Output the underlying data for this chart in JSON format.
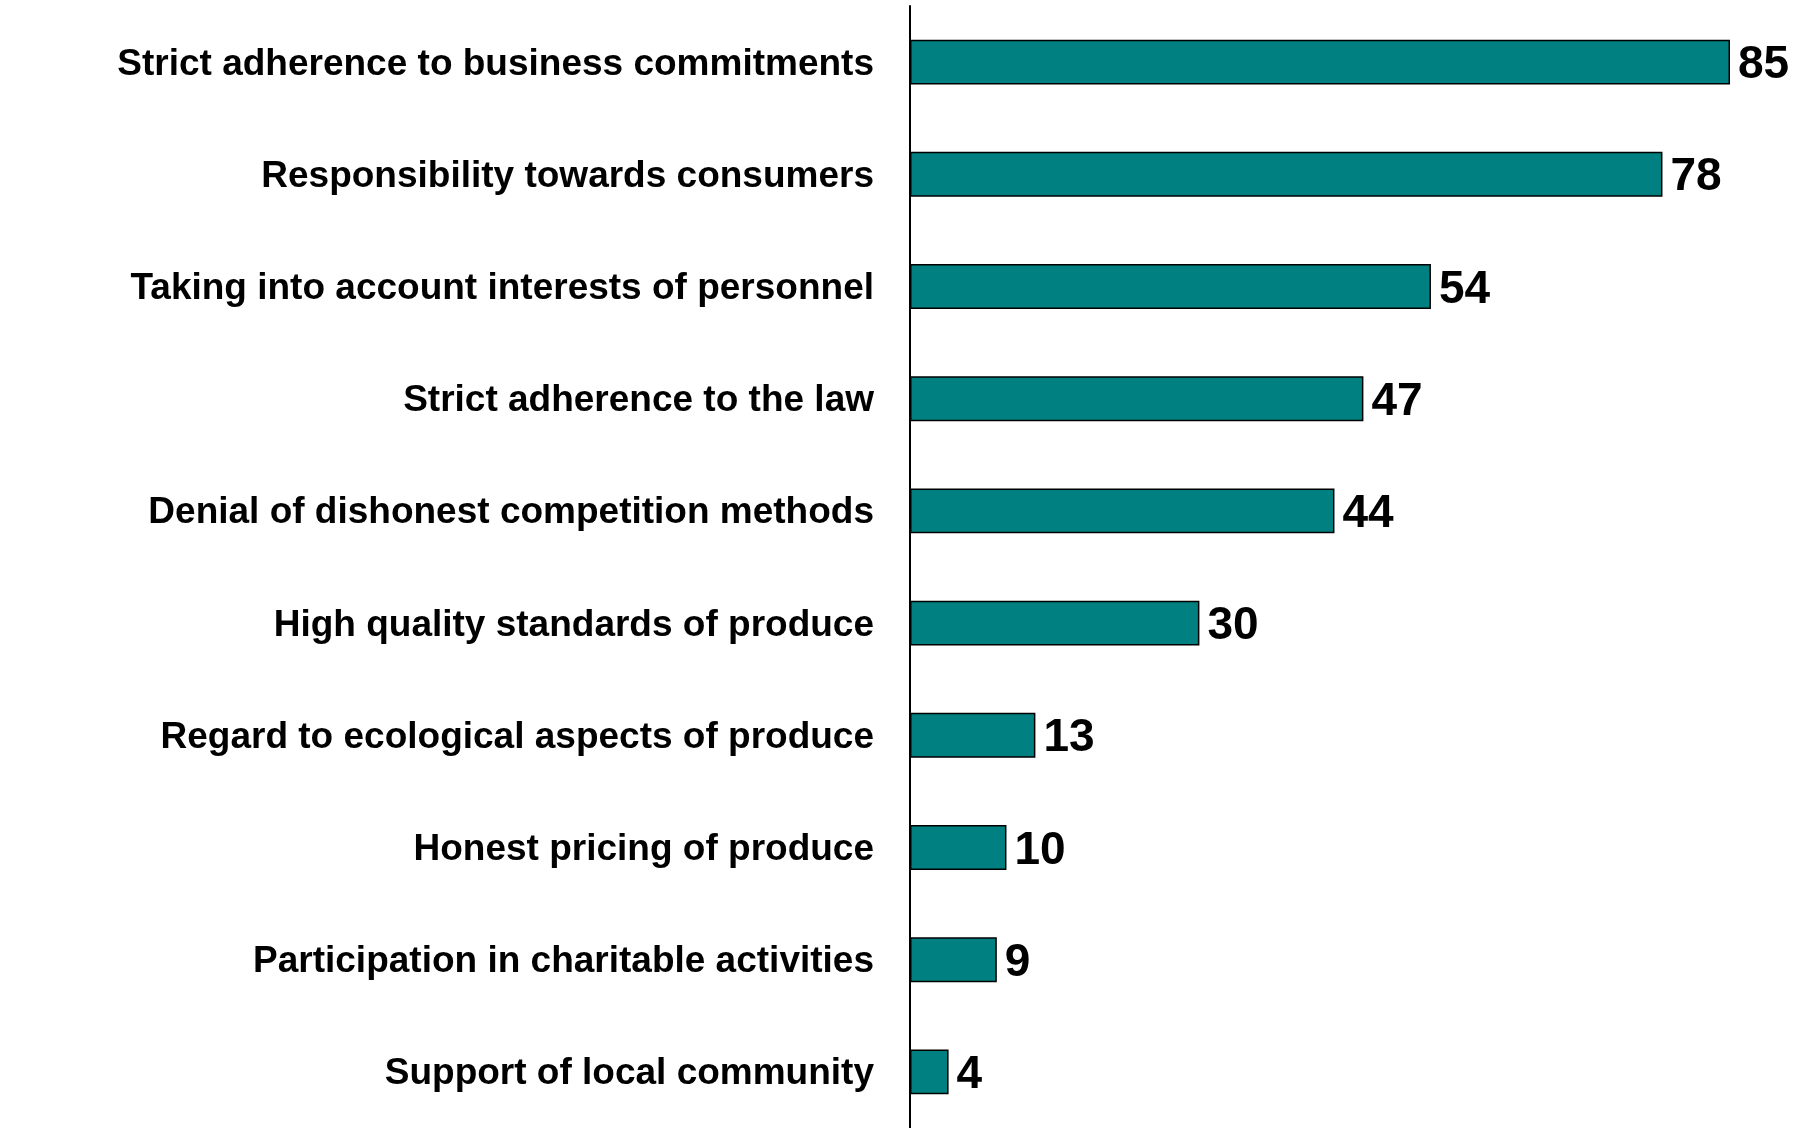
{
  "chart_data": {
    "type": "bar",
    "orientation": "horizontal",
    "categories": [
      "Strict adherence to business commitments",
      "Responsibility towards consumers",
      "Taking into account interests of personnel",
      "Strict adherence to the law",
      "Denial of dishonest competition methods",
      "High quality standards of produce",
      "Regard to ecological aspects of produce",
      "Honest pricing of produce",
      "Participation in charitable activities",
      "Support of local community"
    ],
    "values": [
      85,
      78,
      54,
      47,
      44,
      30,
      13,
      10,
      9,
      4
    ],
    "color": "#008080",
    "data_labels": true
  }
}
